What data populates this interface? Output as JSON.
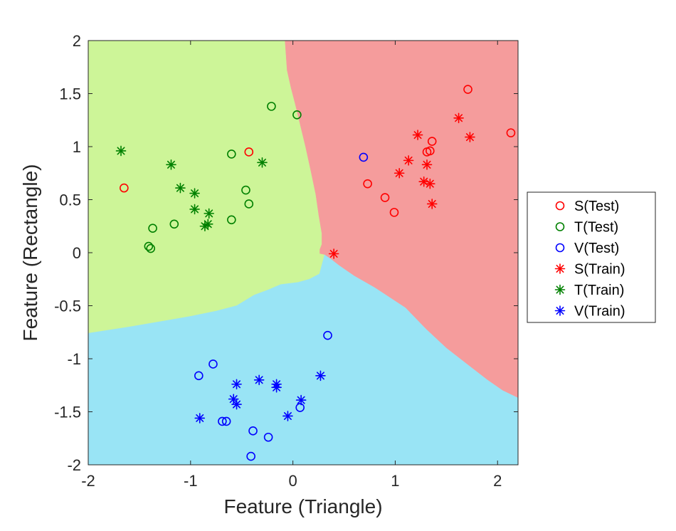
{
  "chart_data": {
    "type": "scatter",
    "title": "",
    "xlabel": "Feature (Triangle)",
    "ylabel": "Feature (Rectangle)",
    "xlim": [
      -2,
      2.2
    ],
    "ylim": [
      -2,
      2
    ],
    "xticks": [
      -2,
      -1,
      0,
      1,
      2
    ],
    "xtick_labels": [
      "-2",
      "-1",
      "0",
      "1",
      "2"
    ],
    "yticks": [
      -2,
      -1.5,
      -1,
      -0.5,
      0,
      0.5,
      1,
      1.5,
      2
    ],
    "ytick_labels": [
      "-2",
      "-1.5",
      "-1",
      "-0.5",
      "0",
      "0.5",
      "1",
      "1.5",
      "2"
    ],
    "legend_position": "outside-right",
    "regions": [
      {
        "class": "S",
        "color": "#f59c9c",
        "boundary": [
          [
            -0.08,
            2
          ],
          [
            -0.06,
            1.72
          ],
          [
            -0.02,
            1.55
          ],
          [
            0.02,
            1.4
          ],
          [
            0.07,
            1.2
          ],
          [
            0.12,
            1.0
          ],
          [
            0.17,
            0.78
          ],
          [
            0.22,
            0.55
          ],
          [
            0.25,
            0.35
          ],
          [
            0.28,
            0.18
          ],
          [
            0.28,
            0.08
          ],
          [
            0.26,
            0.03
          ],
          [
            0.26,
            -0.01
          ],
          [
            0.31,
            -0.02
          ],
          [
            0.37,
            -0.06
          ],
          [
            0.45,
            -0.12
          ],
          [
            0.6,
            -0.22
          ],
          [
            0.8,
            -0.33
          ],
          [
            1.1,
            -0.52
          ],
          [
            1.3,
            -0.72
          ],
          [
            1.5,
            -0.9
          ],
          [
            1.7,
            -1.05
          ],
          [
            1.9,
            -1.2
          ],
          [
            2.05,
            -1.3
          ],
          [
            2.2,
            -1.37
          ],
          [
            2.2,
            2
          ]
        ]
      },
      {
        "class": "T",
        "color": "#cdf598",
        "boundary": [
          [
            -2,
            2
          ],
          [
            -0.08,
            2
          ],
          [
            -0.06,
            1.72
          ],
          [
            -0.02,
            1.55
          ],
          [
            0.02,
            1.4
          ],
          [
            0.07,
            1.2
          ],
          [
            0.12,
            1.0
          ],
          [
            0.17,
            0.78
          ],
          [
            0.22,
            0.55
          ],
          [
            0.25,
            0.35
          ],
          [
            0.28,
            0.18
          ],
          [
            0.28,
            0.08
          ],
          [
            0.26,
            0.03
          ],
          [
            0.26,
            -0.01
          ],
          [
            0.31,
            -0.02
          ],
          [
            0.26,
            -0.2
          ],
          [
            0.16,
            -0.25
          ],
          [
            0.05,
            -0.28
          ],
          [
            -0.12,
            -0.3
          ],
          [
            -0.24,
            -0.35
          ],
          [
            -0.38,
            -0.4
          ],
          [
            -0.55,
            -0.5
          ],
          [
            -0.75,
            -0.55
          ],
          [
            -1.0,
            -0.6
          ],
          [
            -1.3,
            -0.65
          ],
          [
            -1.6,
            -0.7
          ],
          [
            -2,
            -0.76
          ]
        ]
      },
      {
        "class": "V",
        "color": "#99e4f5",
        "boundary": [
          [
            -2,
            -0.76
          ],
          [
            -1.6,
            -0.7
          ],
          [
            -1.3,
            -0.65
          ],
          [
            -1.0,
            -0.6
          ],
          [
            -0.75,
            -0.55
          ],
          [
            -0.55,
            -0.5
          ],
          [
            -0.38,
            -0.4
          ],
          [
            -0.24,
            -0.35
          ],
          [
            -0.12,
            -0.3
          ],
          [
            0.05,
            -0.28
          ],
          [
            0.16,
            -0.25
          ],
          [
            0.26,
            -0.2
          ],
          [
            0.31,
            -0.02
          ],
          [
            0.37,
            -0.06
          ],
          [
            0.45,
            -0.12
          ],
          [
            0.6,
            -0.22
          ],
          [
            0.8,
            -0.33
          ],
          [
            1.1,
            -0.52
          ],
          [
            1.3,
            -0.72
          ],
          [
            1.5,
            -0.9
          ],
          [
            1.7,
            -1.05
          ],
          [
            1.9,
            -1.2
          ],
          [
            2.05,
            -1.3
          ],
          [
            2.2,
            -1.37
          ],
          [
            2.2,
            -2
          ],
          [
            -2,
            -2
          ]
        ]
      }
    ],
    "series": [
      {
        "name": "S(Test)",
        "marker": "circle",
        "color": "#ff0000",
        "points": [
          [
            -1.65,
            0.61
          ],
          [
            -0.43,
            0.95
          ],
          [
            0.73,
            0.65
          ],
          [
            0.9,
            0.52
          ],
          [
            0.99,
            0.38
          ],
          [
            1.31,
            0.95
          ],
          [
            1.34,
            0.96
          ],
          [
            1.36,
            1.05
          ],
          [
            1.71,
            1.54
          ],
          [
            2.13,
            1.13
          ]
        ]
      },
      {
        "name": "T(Test)",
        "marker": "circle",
        "color": "#008000",
        "points": [
          [
            -1.41,
            0.06
          ],
          [
            -1.39,
            0.04
          ],
          [
            -1.37,
            0.23
          ],
          [
            -1.16,
            0.27
          ],
          [
            -0.6,
            0.31
          ],
          [
            -0.6,
            0.93
          ],
          [
            -0.46,
            0.59
          ],
          [
            -0.43,
            0.46
          ],
          [
            -0.21,
            1.38
          ],
          [
            0.04,
            1.3
          ]
        ]
      },
      {
        "name": "V(Test)",
        "marker": "circle",
        "color": "#0000ff",
        "points": [
          [
            0.69,
            0.9
          ],
          [
            -0.92,
            -1.16
          ],
          [
            -0.78,
            -1.05
          ],
          [
            -0.69,
            -1.59
          ],
          [
            -0.65,
            -1.59
          ],
          [
            -0.39,
            -1.68
          ],
          [
            -0.41,
            -1.92
          ],
          [
            -0.24,
            -1.74
          ],
          [
            0.07,
            -1.46
          ],
          [
            0.34,
            -0.78
          ]
        ]
      },
      {
        "name": "S(Train)",
        "marker": "star",
        "color": "#ff0000",
        "points": [
          [
            0.4,
            -0.01
          ],
          [
            1.04,
            0.75
          ],
          [
            1.13,
            0.87
          ],
          [
            1.22,
            1.11
          ],
          [
            1.28,
            0.67
          ],
          [
            1.31,
            0.83
          ],
          [
            1.34,
            0.65
          ],
          [
            1.36,
            0.46
          ],
          [
            1.62,
            1.27
          ],
          [
            1.73,
            1.09
          ]
        ]
      },
      {
        "name": "T(Train)",
        "marker": "star",
        "color": "#008000",
        "points": [
          [
            -1.68,
            0.96
          ],
          [
            -1.19,
            0.83
          ],
          [
            -1.1,
            0.61
          ],
          [
            -0.96,
            0.56
          ],
          [
            -0.96,
            0.41
          ],
          [
            -0.86,
            0.25
          ],
          [
            -0.83,
            0.27
          ],
          [
            -0.82,
            0.37
          ],
          [
            -0.3,
            0.85
          ]
        ]
      },
      {
        "name": "V(Train)",
        "marker": "star",
        "color": "#0000ff",
        "points": [
          [
            -0.91,
            -1.56
          ],
          [
            -0.58,
            -1.38
          ],
          [
            -0.55,
            -1.24
          ],
          [
            -0.55,
            -1.43
          ],
          [
            -0.33,
            -1.2
          ],
          [
            -0.16,
            -1.24
          ],
          [
            -0.16,
            -1.27
          ],
          [
            -0.05,
            -1.54
          ],
          [
            0.08,
            -1.39
          ],
          [
            0.27,
            -1.16
          ]
        ]
      }
    ]
  }
}
